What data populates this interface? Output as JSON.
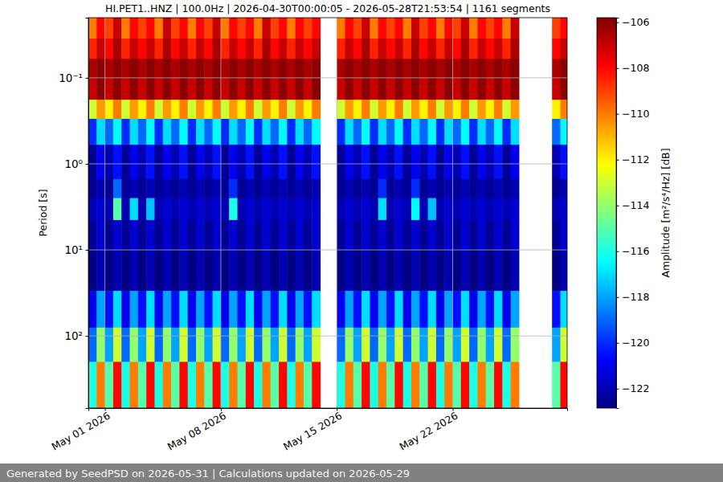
{
  "chart_data": {
    "type": "heatmap",
    "title": "HI.PET1..HNZ | 100.0Hz | 2026-04-30T00:00:05 - 2026-05-28T21:53:54 | 1161 segments",
    "y_label": "Period [s]",
    "footer": "Generated by SeedPSD on 2026-05-31 | Calculations updated on 2026-05-29",
    "log": "y",
    "grid": true,
    "xlim": [
      "2026-04-30T00:00:05",
      "2026-05-28T21:53:54"
    ],
    "xticks": [
      {
        "value": "2026-05-01T00:00:00",
        "label": "May 01 2026"
      },
      {
        "value": "2026-05-08T00:00:00",
        "label": "May 08 2026"
      },
      {
        "value": "2026-05-15T00:00:00",
        "label": "May 15 2026"
      },
      {
        "value": "2026-05-22T00:00:00",
        "label": "May 22 2026"
      }
    ],
    "ylim": [
      690,
      0.02
    ],
    "yticks": [
      {
        "value": 0.1,
        "label": "10⁻¹"
      },
      {
        "value": 1,
        "label": "10⁰"
      },
      {
        "value": 10,
        "label": "10¹"
      },
      {
        "value": 100,
        "label": "10²"
      }
    ],
    "x_bins": [
      "2026-04-30T00:00:00",
      "2026-04-30T12:00:00",
      "2026-05-01T00:00:00",
      "2026-05-01T12:00:00",
      "2026-05-02T00:00:00",
      "2026-05-02T12:00:00",
      "2026-05-03T00:00:00",
      "2026-05-03T12:00:00",
      "2026-05-04T00:00:00",
      "2026-05-04T12:00:00",
      "2026-05-05T00:00:00",
      "2026-05-05T12:00:00",
      "2026-05-06T00:00:00",
      "2026-05-06T12:00:00",
      "2026-05-07T00:00:00",
      "2026-05-07T12:00:00",
      "2026-05-08T00:00:00",
      "2026-05-08T12:00:00",
      "2026-05-09T00:00:00",
      "2026-05-09T12:00:00",
      "2026-05-10T00:00:00",
      "2026-05-10T12:00:00",
      "2026-05-11T00:00:00",
      "2026-05-11T12:00:00",
      "2026-05-12T00:00:00",
      "2026-05-12T12:00:00",
      "2026-05-13T00:00:00",
      "2026-05-13T12:00:00",
      "2026-05-14T00:00:00",
      "2026-05-14T12:00:00",
      "2026-05-15T00:00:00",
      "2026-05-15T12:00:00",
      "2026-05-16T00:00:00",
      "2026-05-16T12:00:00",
      "2026-05-17T00:00:00",
      "2026-05-17T12:00:00",
      "2026-05-18T00:00:00",
      "2026-05-18T12:00:00",
      "2026-05-19T00:00:00",
      "2026-05-19T12:00:00",
      "2026-05-20T00:00:00",
      "2026-05-20T12:00:00",
      "2026-05-21T00:00:00",
      "2026-05-21T12:00:00",
      "2026-05-22T00:00:00",
      "2026-05-22T12:00:00",
      "2026-05-23T00:00:00",
      "2026-05-23T12:00:00",
      "2026-05-24T00:00:00",
      "2026-05-24T12:00:00",
      "2026-05-25T00:00:00",
      "2026-05-25T12:00:00",
      "2026-05-26T00:00:00",
      "2026-05-26T12:00:00",
      "2026-05-27T00:00:00",
      "2026-05-27T12:00:00",
      "2026-05-28T00:00:00",
      "2026-05-28T12:00:00",
      "2026-05-29T00:00:00"
    ],
    "y_bins": [
      0.02,
      0.035,
      0.06,
      0.1,
      0.18,
      0.3,
      0.6,
      1.5,
      2.5,
      4.5,
      10,
      30,
      80,
      200,
      690
    ],
    "z": [
      [
        -110,
        -108,
        -109,
        -107,
        -110,
        -108,
        -109,
        -108,
        -110,
        -107,
        -109,
        -108,
        -110,
        -108,
        -109,
        -107,
        -110,
        -108,
        -109,
        -108,
        -110,
        -107,
        -109,
        -108,
        -110,
        -108,
        -109,
        -108,
        null,
        null,
        -110,
        -108,
        -109,
        -107,
        -110,
        -108,
        -109,
        -108,
        -110,
        -107,
        -109,
        -108,
        -110,
        -108,
        -109,
        -107,
        -110,
        -108,
        -109,
        -108,
        -110,
        -107,
        null,
        null,
        null,
        null,
        -109,
        -108
      ],
      [
        -108.5,
        -107,
        -108,
        -106.5,
        -108.5,
        -107,
        -108,
        -107,
        -108.5,
        -106.5,
        -108,
        -107,
        -108.5,
        -107,
        -108,
        -106.5,
        -108.5,
        -107,
        -108,
        -107,
        -108.5,
        -106.5,
        -108,
        -107,
        -108.5,
        -107,
        -108,
        -107,
        null,
        null,
        -108.5,
        -107,
        -108,
        -106.5,
        -108.5,
        -107,
        -108,
        -107,
        -108.5,
        -106.5,
        -108,
        -107,
        -108.5,
        -107,
        -108,
        -106.5,
        -108.5,
        -107,
        -108,
        -107,
        -108.5,
        -106.5,
        null,
        null,
        null,
        null,
        -108,
        -107
      ],
      [
        -106.5,
        -106,
        -106.5,
        -106,
        -106.5,
        -106,
        -106.5,
        -106,
        -106.5,
        -106,
        -106.5,
        -106,
        -106.5,
        -106,
        -106.5,
        -106,
        -106.5,
        -106,
        -106.5,
        -106,
        -106.5,
        -106,
        -106.5,
        -106,
        -106.5,
        -106,
        -106.5,
        -106,
        null,
        null,
        -106.5,
        -106,
        -106.5,
        -106,
        -106.5,
        -106,
        -106.5,
        -106,
        -106.5,
        -106,
        -106.5,
        -106,
        -106.5,
        -106,
        -106.5,
        -106,
        -106.5,
        -106,
        -106.5,
        -106,
        -106.5,
        -106,
        null,
        null,
        null,
        null,
        -106.5,
        -106
      ],
      [
        -107,
        -106,
        -107,
        -106,
        -107,
        -106,
        -107,
        -106,
        -107,
        -106,
        -107,
        -106,
        -107,
        -106,
        -107,
        -106,
        -107,
        -106,
        -107,
        -106,
        -107,
        -106,
        -107,
        -106,
        -107,
        -106,
        -107,
        -106,
        null,
        null,
        -107,
        -106,
        -107,
        -106,
        -107,
        -106,
        -107,
        -106,
        -107,
        -106,
        -107,
        -106,
        -107,
        -106,
        -107,
        -106,
        -107,
        -106,
        -107,
        -106,
        -107,
        -106,
        null,
        null,
        null,
        null,
        -107,
        -106
      ],
      [
        -113,
        -110.5,
        -112,
        -110,
        -113,
        -110.5,
        -112,
        -110,
        -113,
        -110.5,
        -112,
        -110,
        -113,
        -110.5,
        -112,
        -110,
        -113,
        -110.5,
        -112,
        -110,
        -113,
        -110.5,
        -112,
        -110,
        -113,
        -110.5,
        -112,
        -110,
        null,
        null,
        -113,
        -110.5,
        -112,
        -110,
        -113,
        -110.5,
        -112,
        -110,
        -113,
        -110.5,
        -112,
        -110,
        -113,
        -110.5,
        -112,
        -110,
        -113,
        -110.5,
        -112,
        -110,
        -113,
        -110.5,
        null,
        null,
        null,
        null,
        -112,
        -110
      ],
      [
        -120,
        -117,
        -119,
        -116.5,
        -120,
        -117,
        -119,
        -116.5,
        -120,
        -117,
        -119,
        -116.5,
        -120,
        -117,
        -119,
        -116.5,
        -120,
        -117,
        -119,
        -116.5,
        -120,
        -117,
        -119,
        -116.5,
        -120,
        -117,
        -119,
        -116.5,
        null,
        null,
        -120,
        -117,
        -119,
        -116.5,
        -120,
        -117,
        -119,
        -116.5,
        -120,
        -117,
        -119,
        -116.5,
        -120,
        -117,
        -119,
        -116.5,
        -120,
        -117,
        -119,
        -116.5,
        -120,
        -117,
        null,
        null,
        null,
        null,
        -119,
        -116.5
      ],
      [
        -122.5,
        -121,
        -122,
        -120.5,
        -122.5,
        -121,
        -122,
        -120.5,
        -122.5,
        -121,
        -122,
        -120.5,
        -122.5,
        -121,
        -122,
        -120.5,
        -122.5,
        -121,
        -122,
        -120.5,
        -122.5,
        -121,
        -122,
        -120.5,
        -122.5,
        -121,
        -122,
        -120.5,
        null,
        null,
        -122.5,
        -121,
        -122,
        -120.5,
        -122.5,
        -121,
        -122,
        -120.5,
        -122.5,
        -121,
        -122,
        -120.5,
        -122.5,
        -121,
        -122,
        -120.5,
        -122.5,
        -121,
        -122,
        -120.5,
        -122.5,
        -121,
        null,
        null,
        null,
        null,
        -122,
        -120.5
      ],
      [
        -122.5,
        -122,
        -122.5,
        -119,
        -122.5,
        -122,
        -122.5,
        -122,
        -122.5,
        -122,
        -122.5,
        -122,
        -122.5,
        -122,
        -122.5,
        -122,
        -122.5,
        -120,
        -122.5,
        -122,
        -122.5,
        -122,
        -122.5,
        -122,
        -122.5,
        -122,
        -122.5,
        -122,
        null,
        null,
        -122.5,
        -122,
        -122.5,
        -122,
        -122.5,
        -120,
        -122.5,
        -122,
        -122.5,
        -120,
        -122.5,
        -122,
        -122.5,
        -122,
        -122.5,
        -122,
        -122.5,
        -122,
        -122.5,
        -122,
        -122.5,
        -122,
        null,
        null,
        null,
        null,
        -122.5,
        -122
      ],
      [
        -122,
        -121.5,
        -122,
        -115,
        -122,
        -117,
        -122,
        -117.5,
        -122,
        -121.5,
        -122,
        -121.5,
        -122,
        -121.5,
        -122,
        -121.5,
        -122,
        -116,
        -122,
        -121.5,
        -122,
        -121.5,
        -122,
        -121.5,
        -122,
        -121.5,
        -122,
        -121.5,
        null,
        null,
        -122,
        -121.5,
        -122,
        -121.5,
        -122,
        -117,
        -122,
        -121.5,
        -122,
        -116.5,
        -122,
        -117.5,
        -122,
        -121.5,
        -122,
        -121.5,
        -122,
        -121.5,
        -122,
        -121.5,
        -122,
        -121.5,
        null,
        null,
        null,
        null,
        -122,
        -121.5
      ],
      [
        -122.5,
        -121.5,
        -122.5,
        -121.5,
        -122.5,
        -121.5,
        -122.5,
        -121.5,
        -122.5,
        -121.5,
        -122.5,
        -121.5,
        -122.5,
        -121.5,
        -122.5,
        -121.5,
        -122.5,
        -121.5,
        -122.5,
        -121.5,
        -122.5,
        -121.5,
        -122.5,
        -121.5,
        -122.5,
        -121.5,
        -122.5,
        -121.5,
        null,
        null,
        -122.5,
        -121.5,
        -122.5,
        -121.5,
        -122.5,
        -121.5,
        -122.5,
        -121.5,
        -122.5,
        -121.5,
        -122.5,
        -121.5,
        -122.5,
        -121.5,
        -122.5,
        -121.5,
        -122.5,
        -121.5,
        -122.5,
        -121.5,
        -122.5,
        -121.5,
        null,
        null,
        null,
        null,
        -122.5,
        -121.5
      ],
      [
        -122.8,
        -122,
        -122.8,
        -122,
        -122.8,
        -122,
        -122.8,
        -122,
        -122.8,
        -122,
        -122.8,
        -122,
        -122.8,
        -122,
        -122.8,
        -122,
        -122.8,
        -122,
        -122.8,
        -122,
        -122.8,
        -122,
        -122.8,
        -122,
        -122.8,
        -122,
        -122.8,
        -122,
        null,
        null,
        -122.8,
        -122,
        -122.8,
        -122,
        -122.8,
        -122,
        -122.8,
        -122,
        -122.8,
        -122,
        -122.8,
        -122,
        -122.8,
        -122,
        -122.8,
        -122,
        -122.8,
        -122,
        -122.8,
        -122,
        -122.8,
        -122,
        null,
        null,
        null,
        null,
        -122.8,
        -122
      ],
      [
        -121,
        -118,
        -120.5,
        -117,
        -121,
        -118,
        -120.5,
        -117,
        -121,
        -118,
        -120.5,
        -117,
        -121,
        -118,
        -120.5,
        -117,
        -121,
        -118,
        -120.5,
        -117,
        -121,
        -118,
        -120.5,
        -117,
        -121,
        -118,
        -120.5,
        -117,
        null,
        null,
        -121,
        -118,
        -120.5,
        -117,
        -121,
        -118,
        -120.5,
        -117,
        -121,
        -118,
        -120.5,
        -117,
        -121,
        -118,
        -120.5,
        -117,
        -121,
        -118,
        -120.5,
        -117,
        -121,
        -118,
        null,
        null,
        null,
        null,
        -120.5,
        -117
      ],
      [
        -119,
        -114,
        -118,
        -113,
        -119,
        -114,
        -118,
        -113,
        -119,
        -114,
        -118,
        -113,
        -119,
        -114,
        -118,
        -113,
        -119,
        -114,
        -118,
        -113,
        -119,
        -114,
        -118,
        -113,
        -119,
        -114,
        -118,
        -113,
        null,
        null,
        -119,
        -114,
        -118,
        -113,
        -119,
        -114,
        -118,
        -113,
        -119,
        -114,
        -118,
        -113,
        -119,
        -114,
        -118,
        -113,
        -119,
        -114,
        -118,
        -113,
        -119,
        -114,
        null,
        null,
        null,
        null,
        -118,
        -113
      ],
      [
        -116,
        -110,
        -115,
        -108,
        -116,
        -110,
        -115,
        -108,
        -116,
        -110,
        -115,
        -108,
        -116,
        -110,
        -115,
        -108,
        -116,
        -110,
        -115,
        -108,
        -116,
        -110,
        -115,
        -108,
        -116,
        -110,
        -115,
        -108,
        null,
        null,
        -116,
        -110,
        -115,
        -108,
        -116,
        -110,
        -115,
        -108,
        -116,
        -110,
        -115,
        -108,
        -116,
        -110,
        -115,
        -108,
        -116,
        -110,
        -115,
        -108,
        -116,
        -110,
        null,
        null,
        null,
        null,
        -115,
        -108
      ]
    ],
    "colorbar": {
      "label": "Amplitude [m²/s⁴/Hz] [dB]",
      "range": [
        -122.85,
        -105.8
      ],
      "ticks": [
        {
          "value": -106,
          "label": "−106"
        },
        {
          "value": -108,
          "label": "−108"
        },
        {
          "value": -110,
          "label": "−110"
        },
        {
          "value": -112,
          "label": "−112"
        },
        {
          "value": -114,
          "label": "−114"
        },
        {
          "value": -116,
          "label": "−116"
        },
        {
          "value": -118,
          "label": "−118"
        },
        {
          "value": -120,
          "label": "−120"
        },
        {
          "value": -122,
          "label": "−122"
        }
      ]
    }
  }
}
